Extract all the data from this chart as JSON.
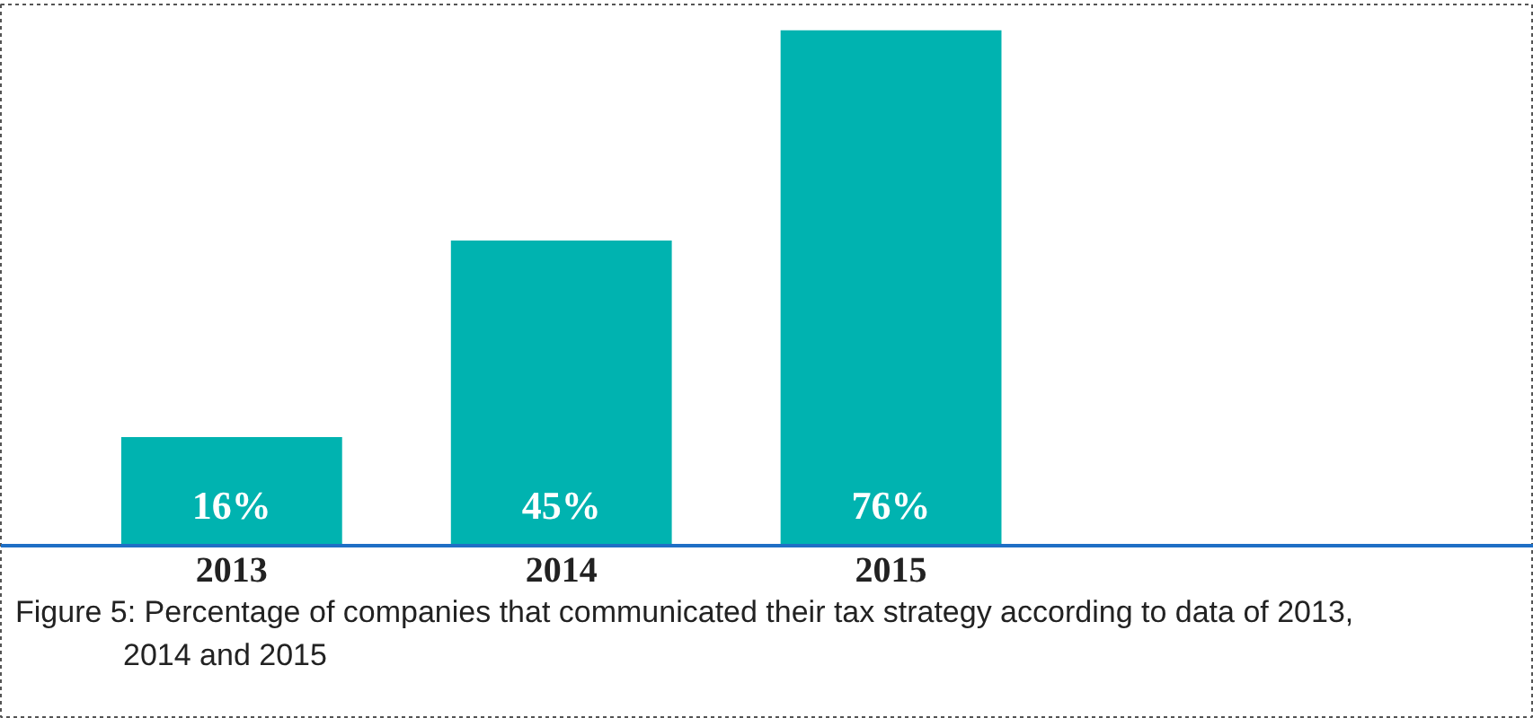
{
  "chart_data": {
    "type": "bar",
    "categories": [
      "2013",
      "2014",
      "2015"
    ],
    "values": [
      16,
      45,
      76
    ],
    "value_labels": [
      "16%",
      "45%",
      "76%"
    ],
    "color": "#00b3b0",
    "annotations": [
      "Figure 5: Percentage of companies that communicated their tax strategy according to data of 2013, 2014 and 2015"
    ]
  }
}
